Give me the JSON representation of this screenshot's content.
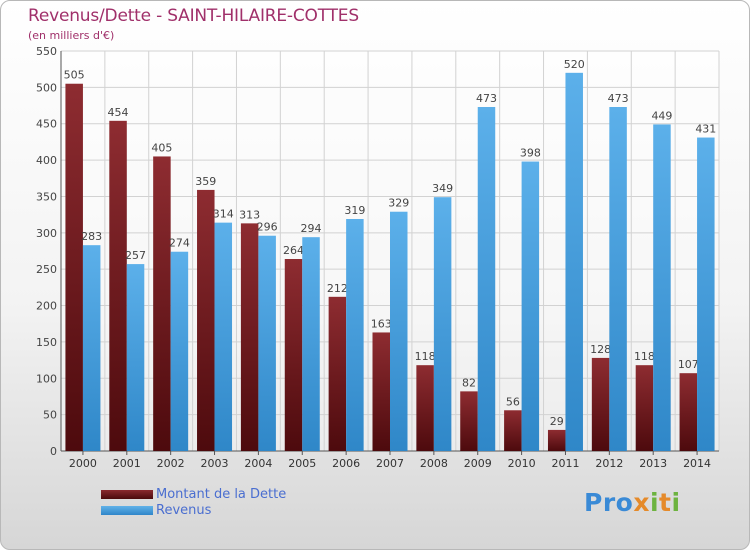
{
  "chart_data": {
    "type": "bar",
    "title": "Revenus/Dette - SAINT-HILAIRE-COTTES",
    "subtitle": "(en milliers d'€)",
    "categories": [
      "2000",
      "2001",
      "2002",
      "2003",
      "2004",
      "2005",
      "2006",
      "2007",
      "2008",
      "2009",
      "2010",
      "2011",
      "2012",
      "2013",
      "2014"
    ],
    "series": [
      {
        "name": "Montant de la Dette",
        "values": [
          505,
          454,
          405,
          359,
          313,
          264,
          212,
          163,
          118,
          82,
          56,
          29,
          128,
          118,
          107
        ],
        "color": "#7b1f24"
      },
      {
        "name": "Revenus",
        "values": [
          283,
          257,
          274,
          314,
          296,
          294,
          319,
          329,
          349,
          473,
          398,
          520,
          473,
          449,
          431
        ],
        "color": "#4aa3e0"
      }
    ],
    "ylim": [
      0,
      550
    ],
    "yticks": [
      0,
      50,
      100,
      150,
      200,
      250,
      300,
      350,
      400,
      450,
      500,
      550
    ],
    "grid": true,
    "legend": "bottom-left"
  },
  "logo": {
    "text": "Proxiti"
  }
}
